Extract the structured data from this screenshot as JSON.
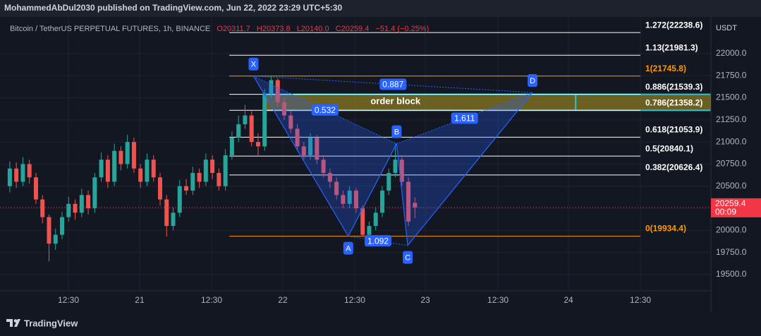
{
  "header": {
    "publisher": "MohammedAbDul2030 published on TradingView.com, Jun 22, 2022 23:29 UTC+5:30",
    "symbol": "Bitcoin / TetherUS PERPETUAL FUTURES, 1h, BINANCE",
    "ohlc": [
      "O20311.7",
      "H20373.8",
      "L20140.0",
      "C20259.4",
      "−51.4 (−0.25%)"
    ]
  },
  "chart_data": {
    "type": "candlestick",
    "currency": "USDT",
    "open": [
      20500,
      20700,
      20550,
      20750,
      20600,
      20350,
      20150,
      19850,
      19950,
      20150,
      20300,
      20200,
      20400,
      20250,
      20600,
      20800,
      20550,
      20900,
      20750,
      21000,
      20700,
      20550,
      20800,
      20600,
      20350,
      20050,
      20200,
      20500,
      20450,
      20650,
      20550,
      20800,
      20650,
      20500,
      20850,
      21050,
      21200,
      21300,
      21000,
      20950,
      21550,
      21700,
      21450,
      21300,
      21150,
      20950,
      20850,
      21050,
      20800,
      20650,
      20550,
      20400,
      20300,
      20450,
      20250,
      19950,
      20050,
      20200,
      20450,
      20650,
      20800,
      20550,
      20311.7
    ],
    "high": [
      20780,
      20770,
      20830,
      20800,
      20650,
      20400,
      20180,
      20020,
      20210,
      20380,
      20350,
      20470,
      20450,
      20650,
      20880,
      20850,
      20980,
      20950,
      21080,
      21050,
      20750,
      20870,
      20850,
      20650,
      20400,
      20260,
      20570,
      20580,
      20720,
      20700,
      20870,
      20850,
      20700,
      20920,
      21120,
      21300,
      21420,
      21350,
      21100,
      21600,
      21746,
      21720,
      21500,
      21350,
      21200,
      21000,
      21100,
      21080,
      20850,
      20700,
      20600,
      20450,
      20500,
      20480,
      20280,
      20100,
      20260,
      20500,
      20700,
      20980,
      20850,
      20600,
      20373.8
    ],
    "low": [
      20430,
      20480,
      20500,
      20530,
      20300,
      20080,
      19650,
      19780,
      19900,
      20100,
      20120,
      20150,
      20180,
      20200,
      20550,
      20480,
      20500,
      20680,
      20700,
      20650,
      20480,
      20500,
      20550,
      20280,
      19930,
      20000,
      20150,
      20400,
      20400,
      20480,
      20500,
      20580,
      20450,
      20450,
      20800,
      21000,
      21150,
      20950,
      20850,
      20900,
      21500,
      21400,
      21250,
      21100,
      20900,
      20800,
      20800,
      20750,
      20600,
      20480,
      20350,
      20250,
      20250,
      20200,
      19934,
      19940,
      20000,
      20150,
      20400,
      20600,
      20500,
      20050,
      20140
    ],
    "close": [
      20700,
      20550,
      20750,
      20600,
      20350,
      20150,
      19850,
      19950,
      20150,
      20300,
      20200,
      20400,
      20250,
      20600,
      20800,
      20550,
      20900,
      20750,
      21000,
      20700,
      20550,
      20800,
      20600,
      20350,
      20050,
      20200,
      20500,
      20450,
      20650,
      20550,
      20800,
      20650,
      20500,
      20850,
      21050,
      21200,
      21300,
      21000,
      20950,
      21550,
      21700,
      21450,
      21300,
      21150,
      20950,
      20850,
      21050,
      20800,
      20650,
      20550,
      20400,
      20300,
      20450,
      20250,
      19950,
      20050,
      20200,
      20450,
      20650,
      20800,
      20550,
      20100,
      20259.4
    ],
    "colors": {
      "up": "#26a69a",
      "down": "#ef5350"
    },
    "xlim": [
      -1.5,
      107.3
    ],
    "xticks": [
      {
        "value": 8.97,
        "label": "12:30"
      },
      {
        "value": 19.87,
        "label": "21"
      },
      {
        "value": 30.88,
        "label": "12:30"
      },
      {
        "value": 41.78,
        "label": "22"
      },
      {
        "value": 52.79,
        "label": "12:30"
      },
      {
        "value": 63.59,
        "label": "23"
      },
      {
        "value": 74.71,
        "label": "12:30"
      },
      {
        "value": 85.5,
        "label": "24"
      },
      {
        "value": 96.51,
        "label": "12:30"
      }
    ],
    "ylim": [
      19332,
      22383
    ],
    "yticks": [
      {
        "value": 22000,
        "label": "22000.0"
      },
      {
        "value": 21750,
        "label": "21750.0"
      },
      {
        "value": 21500,
        "label": "21500.0"
      },
      {
        "value": 21250,
        "label": "21250.0"
      },
      {
        "value": 21000,
        "label": "21000.0"
      },
      {
        "value": 20750,
        "label": "20750.0"
      },
      {
        "value": 20500,
        "label": "20500.0"
      },
      {
        "value": 20250,
        "label": "20250.0"
      },
      {
        "value": 20000,
        "label": "20000.0"
      },
      {
        "value": 19750,
        "label": "19750.0"
      },
      {
        "value": 19500,
        "label": "19500.0"
      }
    ],
    "grid": true,
    "last_price": {
      "value": 20259.4,
      "countdown": "00:09",
      "color": "#f23645"
    },
    "fib": {
      "start": 33.6,
      "end": 96.5,
      "levels": [
        {
          "value": 22238.6,
          "label": "1.272(22238.6)",
          "color": "#ffffff"
        },
        {
          "value": 21981.3,
          "label": "1.13(21981.3)",
          "color": "#ffffff"
        },
        {
          "value": 21745.8,
          "label": "1(21745.8)",
          "color": "#ff9800"
        },
        {
          "value": 21539.3,
          "label": "0.886(21539.3)",
          "color": "#ffffff"
        },
        {
          "value": 21358.2,
          "label": "0.786(21358.2)",
          "color": "#ffffff"
        },
        {
          "value": 21053.9,
          "label": "0.618(21053.9)",
          "color": "#ffffff"
        },
        {
          "value": 20840.1,
          "label": "0.5(20840.1)",
          "color": "#ffffff"
        },
        {
          "value": 20626.4,
          "label": "0.382(20626.4)",
          "color": "#ffffff"
        },
        {
          "value": 19934.4,
          "label": "0(19934.4)",
          "color": "#ff9800"
        }
      ]
    },
    "order_block": {
      "label": "order block",
      "top": 21539.3,
      "bottom": 21358.2,
      "start": 39.0,
      "split": 86.6,
      "color": "#8a7a22",
      "border": "#26c6da"
    },
    "pattern": {
      "color": "#2962ff",
      "points": [
        {
          "label": "X",
          "x": 37.3,
          "y": 21745.8
        },
        {
          "label": "A",
          "x": 51.8,
          "y": 19934.4
        },
        {
          "label": "B",
          "x": 59.2,
          "y": 20980
        },
        {
          "label": "C",
          "x": 60.9,
          "y": 19830
        },
        {
          "label": "D",
          "x": 80.0,
          "y": 21560
        }
      ],
      "ratios": [
        {
          "value": 0.887,
          "from": 0,
          "to": 4
        },
        {
          "value": 0.532,
          "from": 0,
          "to": 2
        },
        {
          "value": 1.092,
          "from": 1,
          "to": 3
        },
        {
          "value": 1.611,
          "from": 2,
          "to": 4
        }
      ]
    }
  },
  "footer": "TradingView"
}
